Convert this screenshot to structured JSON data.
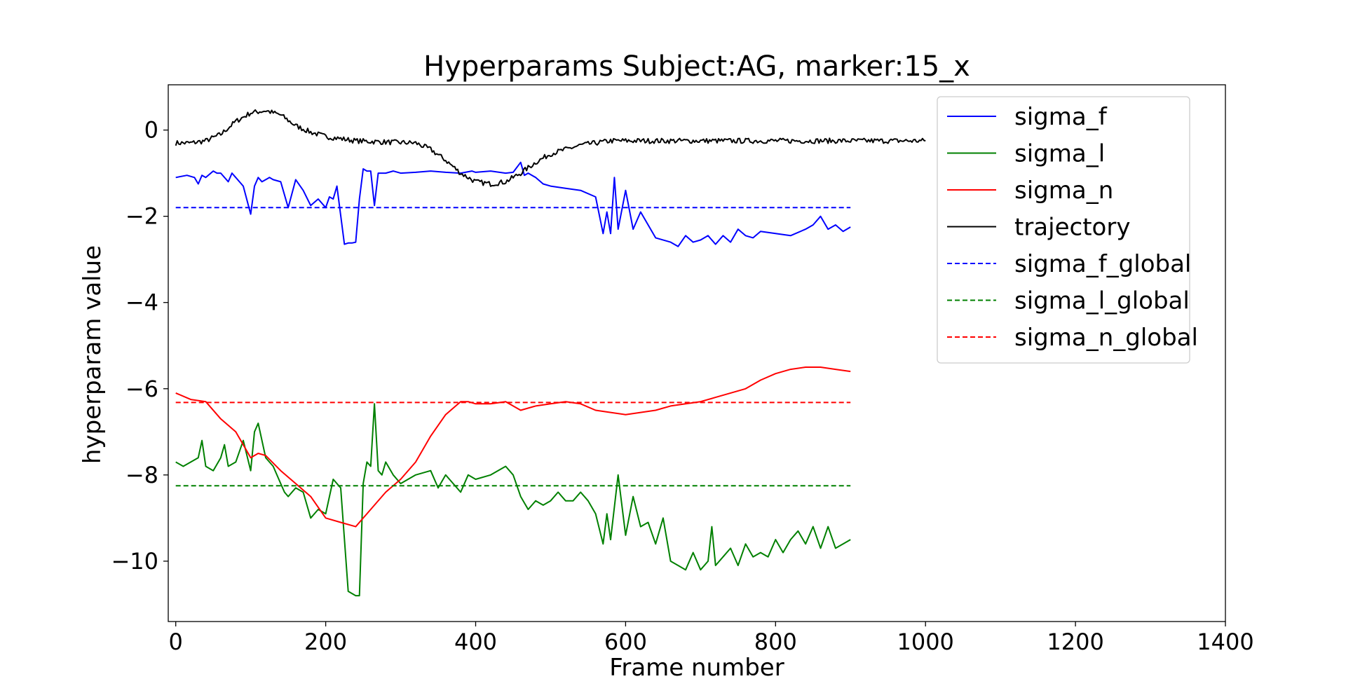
{
  "chart_data": {
    "type": "line",
    "title": "Hyperparams Subject:AG, marker:15_x",
    "xlabel": "Frame number",
    "ylabel": "hyperparam value",
    "xlim": [
      -10,
      1400
    ],
    "ylim": [
      -11.4,
      1.05
    ],
    "x_ticks": [
      {
        "value": 0,
        "label": "0"
      },
      {
        "value": 200,
        "label": "200"
      },
      {
        "value": 400,
        "label": "400"
      },
      {
        "value": 600,
        "label": "600"
      },
      {
        "value": 800,
        "label": "800"
      },
      {
        "value": 1000,
        "label": "1000"
      },
      {
        "value": 1200,
        "label": "1200"
      },
      {
        "value": 1400,
        "label": "1400"
      }
    ],
    "y_ticks": [
      {
        "value": 0,
        "label": "0"
      },
      {
        "value": -2,
        "label": "−2"
      },
      {
        "value": -4,
        "label": "−4"
      },
      {
        "value": -6,
        "label": "−6"
      },
      {
        "value": -8,
        "label": "−8"
      },
      {
        "value": -10,
        "label": "−10"
      }
    ],
    "grid": false,
    "legend_position": "top-right",
    "series": [
      {
        "name": "sigma_f",
        "color": "#0000ff",
        "style": "solid",
        "x": [
          0,
          15,
          25,
          30,
          35,
          40,
          50,
          55,
          60,
          70,
          75,
          80,
          90,
          100,
          105,
          110,
          115,
          120,
          125,
          130,
          140,
          150,
          160,
          170,
          180,
          190,
          200,
          205,
          210,
          215,
          225,
          230,
          235,
          240,
          245,
          250,
          255,
          260,
          265,
          270,
          280,
          290,
          300,
          320,
          340,
          360,
          380,
          395,
          400,
          420,
          440,
          450,
          460,
          465,
          470,
          480,
          490,
          500,
          520,
          540,
          560,
          570,
          575,
          580,
          585,
          590,
          600,
          610,
          620,
          640,
          660,
          670,
          680,
          690,
          700,
          710,
          720,
          730,
          740,
          750,
          760,
          770,
          780,
          800,
          820,
          840,
          850,
          860,
          870,
          880,
          890,
          900
        ],
        "y": [
          -1.1,
          -1.05,
          -1.1,
          -1.25,
          -1.05,
          -1.1,
          -0.95,
          -1.0,
          -1.0,
          -1.2,
          -1.0,
          -1.1,
          -1.3,
          -1.95,
          -1.3,
          -1.1,
          -1.2,
          -1.15,
          -1.1,
          -1.15,
          -1.2,
          -1.8,
          -1.15,
          -1.4,
          -1.75,
          -1.6,
          -1.8,
          -1.55,
          -1.6,
          -1.3,
          -2.65,
          -2.62,
          -2.62,
          -2.6,
          -1.6,
          -0.9,
          -0.95,
          -0.95,
          -1.75,
          -1.0,
          -1.0,
          -0.95,
          -1.0,
          -0.98,
          -0.95,
          -0.98,
          -1.0,
          -0.95,
          -0.98,
          -0.95,
          -1.0,
          -0.98,
          -0.75,
          -1.05,
          -1.0,
          -1.1,
          -1.25,
          -1.3,
          -1.35,
          -1.4,
          -1.55,
          -2.4,
          -1.9,
          -2.4,
          -1.1,
          -2.3,
          -1.4,
          -2.3,
          -1.9,
          -2.5,
          -2.6,
          -2.7,
          -2.45,
          -2.6,
          -2.55,
          -2.45,
          -2.65,
          -2.45,
          -2.6,
          -2.3,
          -2.45,
          -2.5,
          -2.35,
          -2.4,
          -2.45,
          -2.3,
          -2.2,
          -2.0,
          -2.3,
          -2.2,
          -2.35,
          -2.25
        ]
      },
      {
        "name": "sigma_l",
        "color": "#008000",
        "style": "solid",
        "x": [
          0,
          10,
          20,
          30,
          35,
          40,
          50,
          60,
          65,
          70,
          80,
          90,
          100,
          105,
          110,
          120,
          130,
          140,
          145,
          150,
          160,
          170,
          180,
          190,
          200,
          210,
          220,
          230,
          240,
          245,
          250,
          255,
          260,
          265,
          270,
          275,
          280,
          290,
          300,
          320,
          340,
          350,
          360,
          380,
          390,
          400,
          420,
          440,
          450,
          460,
          470,
          480,
          490,
          500,
          510,
          520,
          530,
          540,
          550,
          560,
          570,
          575,
          580,
          590,
          600,
          610,
          620,
          630,
          640,
          650,
          660,
          670,
          680,
          690,
          700,
          710,
          715,
          720,
          730,
          740,
          750,
          760,
          770,
          780,
          790,
          800,
          810,
          820,
          830,
          840,
          850,
          860,
          870,
          880,
          890,
          900
        ],
        "y": [
          -7.7,
          -7.8,
          -7.7,
          -7.6,
          -7.2,
          -7.8,
          -7.9,
          -7.6,
          -7.3,
          -7.8,
          -7.7,
          -7.2,
          -7.9,
          -7.0,
          -6.8,
          -7.6,
          -7.8,
          -8.2,
          -8.4,
          -8.5,
          -8.3,
          -8.4,
          -9.0,
          -8.8,
          -8.9,
          -8.1,
          -8.3,
          -10.7,
          -10.8,
          -10.8,
          -8.2,
          -7.7,
          -7.8,
          -6.35,
          -7.9,
          -8.0,
          -7.7,
          -8.0,
          -8.2,
          -8.0,
          -7.9,
          -8.3,
          -8.0,
          -8.4,
          -8.0,
          -8.1,
          -8.0,
          -7.8,
          -8.0,
          -8.5,
          -8.8,
          -8.6,
          -8.7,
          -8.6,
          -8.4,
          -8.6,
          -8.6,
          -8.4,
          -8.6,
          -8.9,
          -9.6,
          -8.9,
          -9.5,
          -8.0,
          -9.4,
          -8.5,
          -9.2,
          -9.1,
          -9.6,
          -9.0,
          -10.0,
          -10.1,
          -10.2,
          -9.8,
          -10.2,
          -10.0,
          -9.2,
          -10.1,
          -9.9,
          -9.7,
          -10.1,
          -9.6,
          -9.9,
          -9.8,
          -9.9,
          -9.5,
          -9.8,
          -9.5,
          -9.3,
          -9.6,
          -9.2,
          -9.7,
          -9.2,
          -9.7,
          -9.6,
          -9.5
        ]
      },
      {
        "name": "sigma_n",
        "color": "#ff0000",
        "style": "solid",
        "x": [
          0,
          20,
          40,
          60,
          80,
          90,
          100,
          110,
          120,
          140,
          160,
          180,
          200,
          220,
          240,
          260,
          280,
          300,
          320,
          340,
          360,
          380,
          390,
          400,
          420,
          440,
          460,
          480,
          500,
          520,
          540,
          560,
          580,
          600,
          620,
          640,
          660,
          680,
          700,
          720,
          740,
          760,
          780,
          800,
          820,
          840,
          860,
          880,
          900
        ],
        "y": [
          -6.1,
          -6.25,
          -6.3,
          -6.7,
          -7.0,
          -7.3,
          -7.6,
          -7.5,
          -7.55,
          -7.9,
          -8.2,
          -8.5,
          -9.0,
          -9.1,
          -9.2,
          -8.8,
          -8.4,
          -8.1,
          -7.7,
          -7.1,
          -6.6,
          -6.3,
          -6.3,
          -6.35,
          -6.35,
          -6.3,
          -6.5,
          -6.4,
          -6.35,
          -6.3,
          -6.35,
          -6.5,
          -6.55,
          -6.6,
          -6.55,
          -6.5,
          -6.4,
          -6.35,
          -6.3,
          -6.2,
          -6.1,
          -6.0,
          -5.8,
          -5.65,
          -5.55,
          -5.5,
          -5.5,
          -5.55,
          -5.6
        ]
      },
      {
        "name": "trajectory",
        "color": "#000000",
        "style": "solid",
        "x": [
          0,
          20,
          40,
          60,
          80,
          100,
          120,
          140,
          160,
          180,
          200,
          240,
          280,
          320,
          340,
          360,
          380,
          400,
          420,
          440,
          460,
          480,
          500,
          540,
          580,
          620,
          660,
          700,
          740,
          780,
          820,
          860,
          900,
          940,
          980,
          1000
        ],
        "y": [
          -0.3,
          -0.3,
          -0.25,
          -0.1,
          0.2,
          0.4,
          0.45,
          0.35,
          0.1,
          -0.05,
          -0.15,
          -0.25,
          -0.28,
          -0.3,
          -0.45,
          -0.7,
          -1.0,
          -1.2,
          -1.25,
          -1.2,
          -1.0,
          -0.75,
          -0.55,
          -0.35,
          -0.25,
          -0.25,
          -0.25,
          -0.25,
          -0.25,
          -0.25,
          -0.25,
          -0.25,
          -0.25,
          -0.25,
          -0.25,
          -0.25
        ],
        "noise": 0.06
      },
      {
        "name": "sigma_f_global",
        "color": "#0000ff",
        "style": "dashed",
        "x": [
          0,
          900
        ],
        "y": [
          -1.8,
          -1.8
        ]
      },
      {
        "name": "sigma_l_global",
        "color": "#008000",
        "style": "dashed",
        "x": [
          0,
          900
        ],
        "y": [
          -8.25,
          -8.25
        ]
      },
      {
        "name": "sigma_n_global",
        "color": "#ff0000",
        "style": "dashed",
        "x": [
          0,
          900
        ],
        "y": [
          -6.32,
          -6.32
        ]
      }
    ]
  }
}
